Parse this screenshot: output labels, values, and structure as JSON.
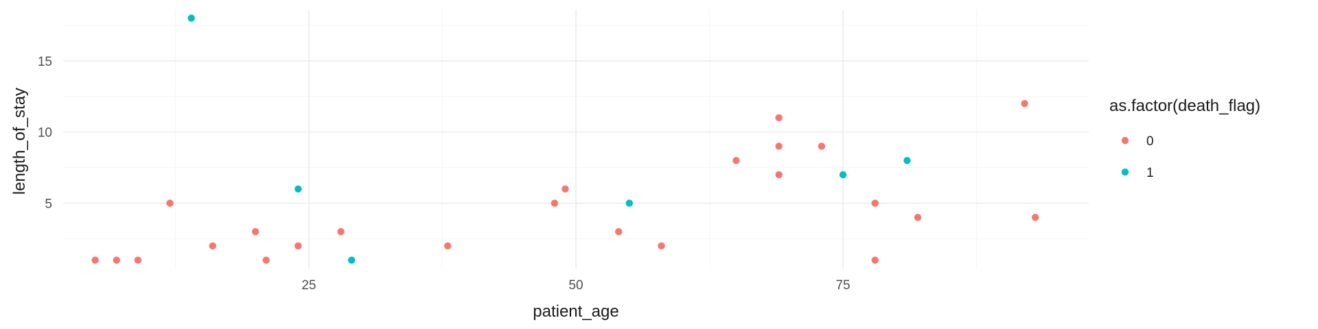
{
  "chart_data": {
    "type": "scatter",
    "xlabel": "patient_age",
    "ylabel": "length_of_stay",
    "xlim": [
      2,
      98
    ],
    "ylim": [
      0.4,
      18.6
    ],
    "x_ticks": [
      25,
      50,
      75
    ],
    "y_ticks": [
      5,
      10,
      15
    ],
    "x_tick_labels": [
      "25",
      "50",
      "75"
    ],
    "y_tick_labels": [
      "5",
      "10",
      "15"
    ],
    "x_minor_ticks": [
      12.5,
      37.5,
      62.5,
      87.5
    ],
    "y_minor_ticks": [
      2.5,
      7.5,
      12.5,
      17.5
    ],
    "grid": true,
    "legend": {
      "title": "as.factor(death_flag)",
      "position": "right",
      "entries": [
        {
          "label": "0",
          "color": "#F8766D"
        },
        {
          "label": "1",
          "color": "#00BFC4"
        }
      ]
    },
    "series": [
      {
        "name": "0",
        "color": "#F8766D",
        "points": [
          {
            "x": 5,
            "y": 1
          },
          {
            "x": 7,
            "y": 1
          },
          {
            "x": 9,
            "y": 1
          },
          {
            "x": 12,
            "y": 5
          },
          {
            "x": 16,
            "y": 2
          },
          {
            "x": 20,
            "y": 3
          },
          {
            "x": 21,
            "y": 1
          },
          {
            "x": 24,
            "y": 2
          },
          {
            "x": 28,
            "y": 3
          },
          {
            "x": 38,
            "y": 2
          },
          {
            "x": 48,
            "y": 5
          },
          {
            "x": 49,
            "y": 6
          },
          {
            "x": 54,
            "y": 3
          },
          {
            "x": 58,
            "y": 2
          },
          {
            "x": 65,
            "y": 8
          },
          {
            "x": 69,
            "y": 11
          },
          {
            "x": 69,
            "y": 9
          },
          {
            "x": 69,
            "y": 7
          },
          {
            "x": 73,
            "y": 9
          },
          {
            "x": 78,
            "y": 5
          },
          {
            "x": 78,
            "y": 1
          },
          {
            "x": 82,
            "y": 4
          },
          {
            "x": 92,
            "y": 12
          },
          {
            "x": 93,
            "y": 4
          }
        ]
      },
      {
        "name": "1",
        "color": "#00BFC4",
        "points": [
          {
            "x": 14,
            "y": 18
          },
          {
            "x": 24,
            "y": 6
          },
          {
            "x": 29,
            "y": 1
          },
          {
            "x": 55,
            "y": 5
          },
          {
            "x": 75,
            "y": 7
          },
          {
            "x": 81,
            "y": 8
          }
        ]
      }
    ]
  }
}
